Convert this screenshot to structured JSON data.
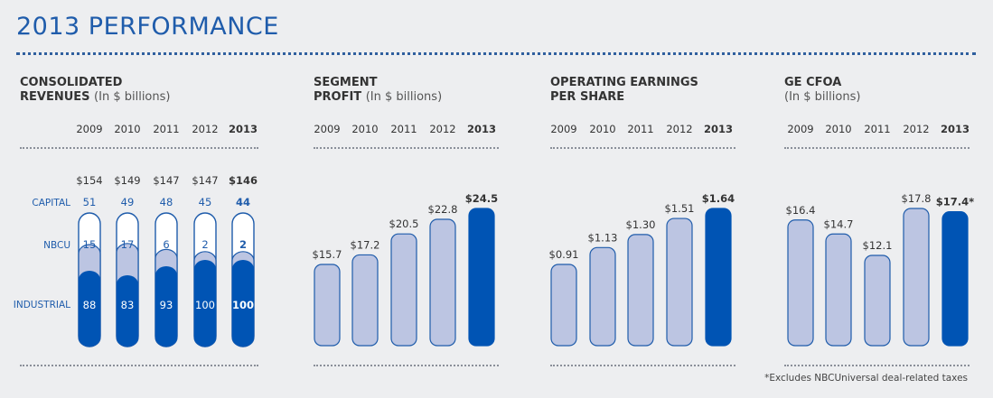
{
  "page": {
    "title": "2013 PERFORMANCE"
  },
  "years": [
    "2009",
    "2010",
    "2011",
    "2012",
    "2013"
  ],
  "footnote": "*Excludes NBCUniversal deal-related taxes",
  "colors": {
    "light": "#bcc5e2",
    "dark": "#0054b4",
    "outline": "#1f5cab",
    "title": "#1f5cab"
  },
  "chart_data": [
    {
      "type": "bar",
      "title": "CONSOLIDATED",
      "title2": "REVENUES",
      "subtitle": "(In $ billions)",
      "categories": [
        "2009",
        "2010",
        "2011",
        "2012",
        "2013"
      ],
      "totals": [
        "$154",
        "$149",
        "$147",
        "$147",
        "$146"
      ],
      "series": [
        {
          "name": "INDUSTRIAL",
          "values": [
            88,
            83,
            93,
            100,
            100
          ]
        },
        {
          "name": "NBCU",
          "values": [
            15,
            17,
            6,
            2,
            2
          ]
        },
        {
          "name": "CAPITAL",
          "values": [
            51,
            49,
            48,
            45,
            44
          ]
        }
      ]
    },
    {
      "type": "bar",
      "title": "SEGMENT",
      "title2": "PROFIT",
      "subtitle": "(In $ billions)",
      "categories": [
        "2009",
        "2010",
        "2011",
        "2012",
        "2013"
      ],
      "values": [
        15.7,
        17.2,
        20.5,
        22.8,
        24.5
      ],
      "labels": [
        "$15.7",
        "$17.2",
        "$20.5",
        "$22.8",
        "$24.5"
      ]
    },
    {
      "type": "bar",
      "title": "OPERATING EARNINGS",
      "title2": "PER SHARE",
      "subtitle": "",
      "categories": [
        "2009",
        "2010",
        "2011",
        "2012",
        "2013"
      ],
      "values": [
        0.91,
        1.13,
        1.3,
        1.51,
        1.64
      ],
      "labels": [
        "$0.91",
        "$1.13",
        "$1.30",
        "$1.51",
        "$1.64"
      ]
    },
    {
      "type": "bar",
      "title": "GE CFOA",
      "title2": "",
      "subtitle": "(In $ billions)",
      "categories": [
        "2009",
        "2010",
        "2011",
        "2012",
        "2013"
      ],
      "values": [
        16.4,
        14.7,
        12.1,
        17.8,
        17.4
      ],
      "labels": [
        "$16.4",
        "$14.7",
        "$12.1",
        "$17.8",
        "$17.4*"
      ]
    }
  ]
}
